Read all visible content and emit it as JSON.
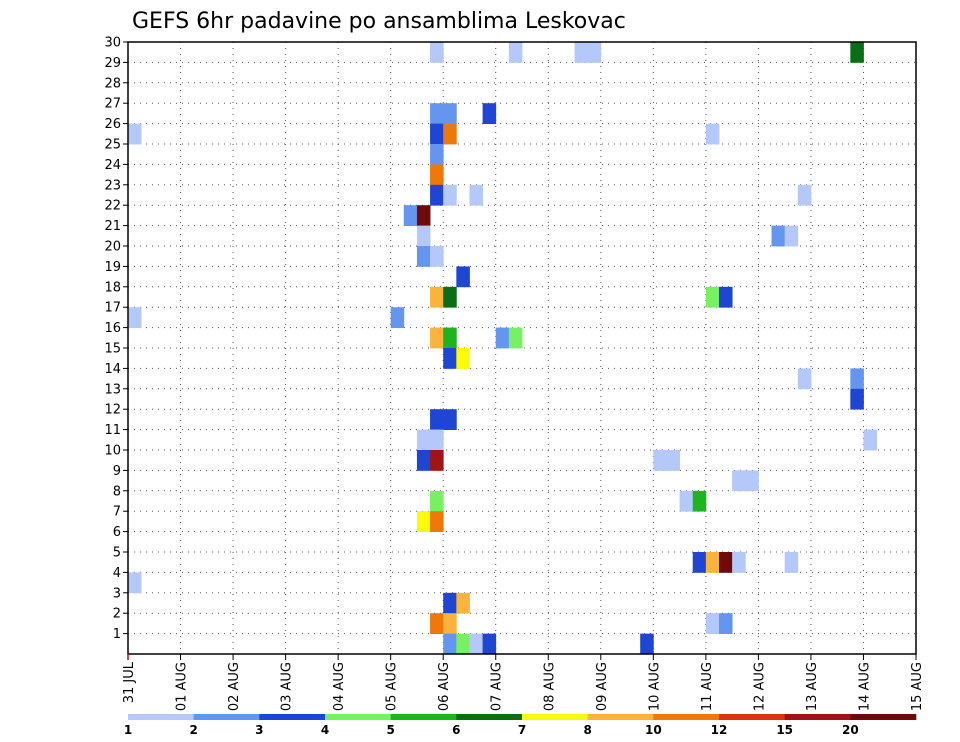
{
  "chart_data": {
    "type": "heatmap",
    "title": "GEFS 6hr padavine po ansamblima Leskovac",
    "x_tick_labels": [
      "31 JUL",
      "01 AUG",
      "02 AUG",
      "03 AUG",
      "04 AUG",
      "05 AUG",
      "06 AUG",
      "07 AUG",
      "08 AUG",
      "09 AUG",
      "10 AUG",
      "11 AUG",
      "12 AUG",
      "13 AUG",
      "14 AUG",
      "15 AUG"
    ],
    "y_tick_labels": [
      "1",
      "2",
      "3",
      "4",
      "5",
      "6",
      "7",
      "8",
      "9",
      "10",
      "11",
      "12",
      "13",
      "14",
      "15",
      "16",
      "17",
      "18",
      "19",
      "20",
      "21",
      "22",
      "23",
      "24",
      "25",
      "26",
      "27",
      "28",
      "29",
      "30"
    ],
    "xlim": [
      0,
      60
    ],
    "ylim": [
      0,
      30
    ],
    "grid": true,
    "colorbar": {
      "tick_labels": [
        "1",
        "2",
        "3",
        "4",
        "5",
        "6",
        "7",
        "8",
        "10",
        "12",
        "15",
        "20"
      ],
      "colors": [
        "#b4c8fa",
        "#6496f0",
        "#1e46d2",
        "#78f064",
        "#1eb41e",
        "#0a6e14",
        "#fafa0a",
        "#fab43c",
        "#f0780a",
        "#dc3214",
        "#a01414",
        "#6e0a0a"
      ]
    },
    "cells": [
      {
        "x": 29,
        "y": 30,
        "v": 1
      },
      {
        "x": 34,
        "y": 30,
        "v": 1
      },
      {
        "x": 35,
        "y": 30,
        "v": 1
      },
      {
        "x": 55,
        "y": 30,
        "v": 6
      },
      {
        "x": 23,
        "y": 30,
        "v": 1
      },
      {
        "x": 23,
        "y": 27,
        "v": 2
      },
      {
        "x": 24,
        "y": 27,
        "v": 2
      },
      {
        "x": 27,
        "y": 27,
        "v": 3
      },
      {
        "x": 0,
        "y": 26,
        "v": 1
      },
      {
        "x": 23,
        "y": 26,
        "v": 3
      },
      {
        "x": 24,
        "y": 26,
        "v": 10
      },
      {
        "x": 44,
        "y": 26,
        "v": 1
      },
      {
        "x": 23,
        "y": 25,
        "v": 2
      },
      {
        "x": 23,
        "y": 24,
        "v": 10
      },
      {
        "x": 23,
        "y": 23,
        "v": 3
      },
      {
        "x": 24,
        "y": 23,
        "v": 1
      },
      {
        "x": 26,
        "y": 23,
        "v": 1
      },
      {
        "x": 51,
        "y": 23,
        "v": 1
      },
      {
        "x": 21,
        "y": 22,
        "v": 2
      },
      {
        "x": 22,
        "y": 22,
        "v": 20
      },
      {
        "x": 22,
        "y": 21,
        "v": 1
      },
      {
        "x": 49,
        "y": 21,
        "v": 2
      },
      {
        "x": 50,
        "y": 21,
        "v": 1
      },
      {
        "x": 22,
        "y": 20,
        "v": 2
      },
      {
        "x": 23,
        "y": 20,
        "v": 1
      },
      {
        "x": 25,
        "y": 19,
        "v": 3
      },
      {
        "x": 23,
        "y": 18,
        "v": 8
      },
      {
        "x": 24,
        "y": 18,
        "v": 6
      },
      {
        "x": 44,
        "y": 18,
        "v": 4
      },
      {
        "x": 45,
        "y": 18,
        "v": 3
      },
      {
        "x": 0,
        "y": 17,
        "v": 1
      },
      {
        "x": 20,
        "y": 17,
        "v": 2
      },
      {
        "x": 23,
        "y": 16,
        "v": 8
      },
      {
        "x": 24,
        "y": 16,
        "v": 5
      },
      {
        "x": 28,
        "y": 16,
        "v": 2
      },
      {
        "x": 29,
        "y": 16,
        "v": 4
      },
      {
        "x": 24,
        "y": 15,
        "v": 3
      },
      {
        "x": 25,
        "y": 15,
        "v": 7
      },
      {
        "x": 51,
        "y": 14,
        "v": 1
      },
      {
        "x": 55,
        "y": 14,
        "v": 2
      },
      {
        "x": 55,
        "y": 13,
        "v": 3
      },
      {
        "x": 23,
        "y": 12,
        "v": 3
      },
      {
        "x": 24,
        "y": 12,
        "v": 3
      },
      {
        "x": 22,
        "y": 11,
        "v": 1
      },
      {
        "x": 23,
        "y": 11,
        "v": 1
      },
      {
        "x": 56,
        "y": 11,
        "v": 1
      },
      {
        "x": 22,
        "y": 10,
        "v": 3
      },
      {
        "x": 23,
        "y": 10,
        "v": 15
      },
      {
        "x": 40,
        "y": 10,
        "v": 1
      },
      {
        "x": 41,
        "y": 10,
        "v": 1
      },
      {
        "x": 46,
        "y": 9,
        "v": 1
      },
      {
        "x": 47,
        "y": 9,
        "v": 1
      },
      {
        "x": 23,
        "y": 8,
        "v": 4
      },
      {
        "x": 42,
        "y": 8,
        "v": 1
      },
      {
        "x": 43,
        "y": 8,
        "v": 5
      },
      {
        "x": 22,
        "y": 7,
        "v": 7
      },
      {
        "x": 23,
        "y": 7,
        "v": 10
      },
      {
        "x": 43,
        "y": 5,
        "v": 3
      },
      {
        "x": 44,
        "y": 5,
        "v": 8
      },
      {
        "x": 45,
        "y": 5,
        "v": 20
      },
      {
        "x": 46,
        "y": 5,
        "v": 1
      },
      {
        "x": 50,
        "y": 5,
        "v": 1
      },
      {
        "x": 0,
        "y": 4,
        "v": 1
      },
      {
        "x": 24,
        "y": 3,
        "v": 3
      },
      {
        "x": 25,
        "y": 3,
        "v": 8
      },
      {
        "x": 23,
        "y": 2,
        "v": 10
      },
      {
        "x": 24,
        "y": 2,
        "v": 8
      },
      {
        "x": 44,
        "y": 2,
        "v": 1
      },
      {
        "x": 45,
        "y": 2,
        "v": 2
      },
      {
        "x": 24,
        "y": 1,
        "v": 2
      },
      {
        "x": 25,
        "y": 1,
        "v": 4
      },
      {
        "x": 26,
        "y": 1,
        "v": 1
      },
      {
        "x": 27,
        "y": 1,
        "v": 3
      },
      {
        "x": 39,
        "y": 1,
        "v": 3
      }
    ]
  }
}
